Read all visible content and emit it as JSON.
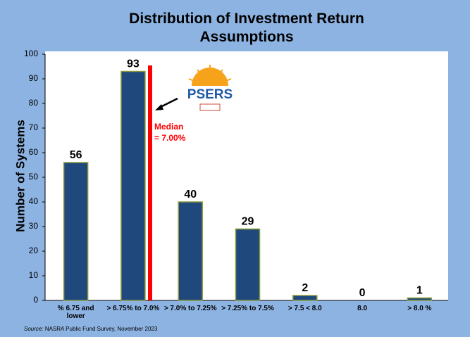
{
  "chart_data": {
    "type": "bar",
    "title": "Distribution of Investment Return Assumptions",
    "y_label": "Number of Systems",
    "categories": [
      "% 6.75  and lower",
      "> 6.75% to 7.0%",
      "> 7.0% to 7.25%",
      "> 7.25% to 7.5%",
      "> 7.5 < 8.0",
      "8.0",
      ">  8.0  %"
    ],
    "values": [
      56,
      93,
      40,
      29,
      2,
      0,
      1
    ],
    "color": "#1f497d",
    "ylim": [
      0,
      100
    ],
    "yticks": [
      0,
      10,
      20,
      30,
      40,
      50,
      60,
      70,
      80,
      90,
      100
    ],
    "annotation": "Median = 7.00%",
    "logo_text": "PSERS",
    "source_label": "Source:",
    "source_text": "NASRA Public Fund Survey, November 2023"
  }
}
